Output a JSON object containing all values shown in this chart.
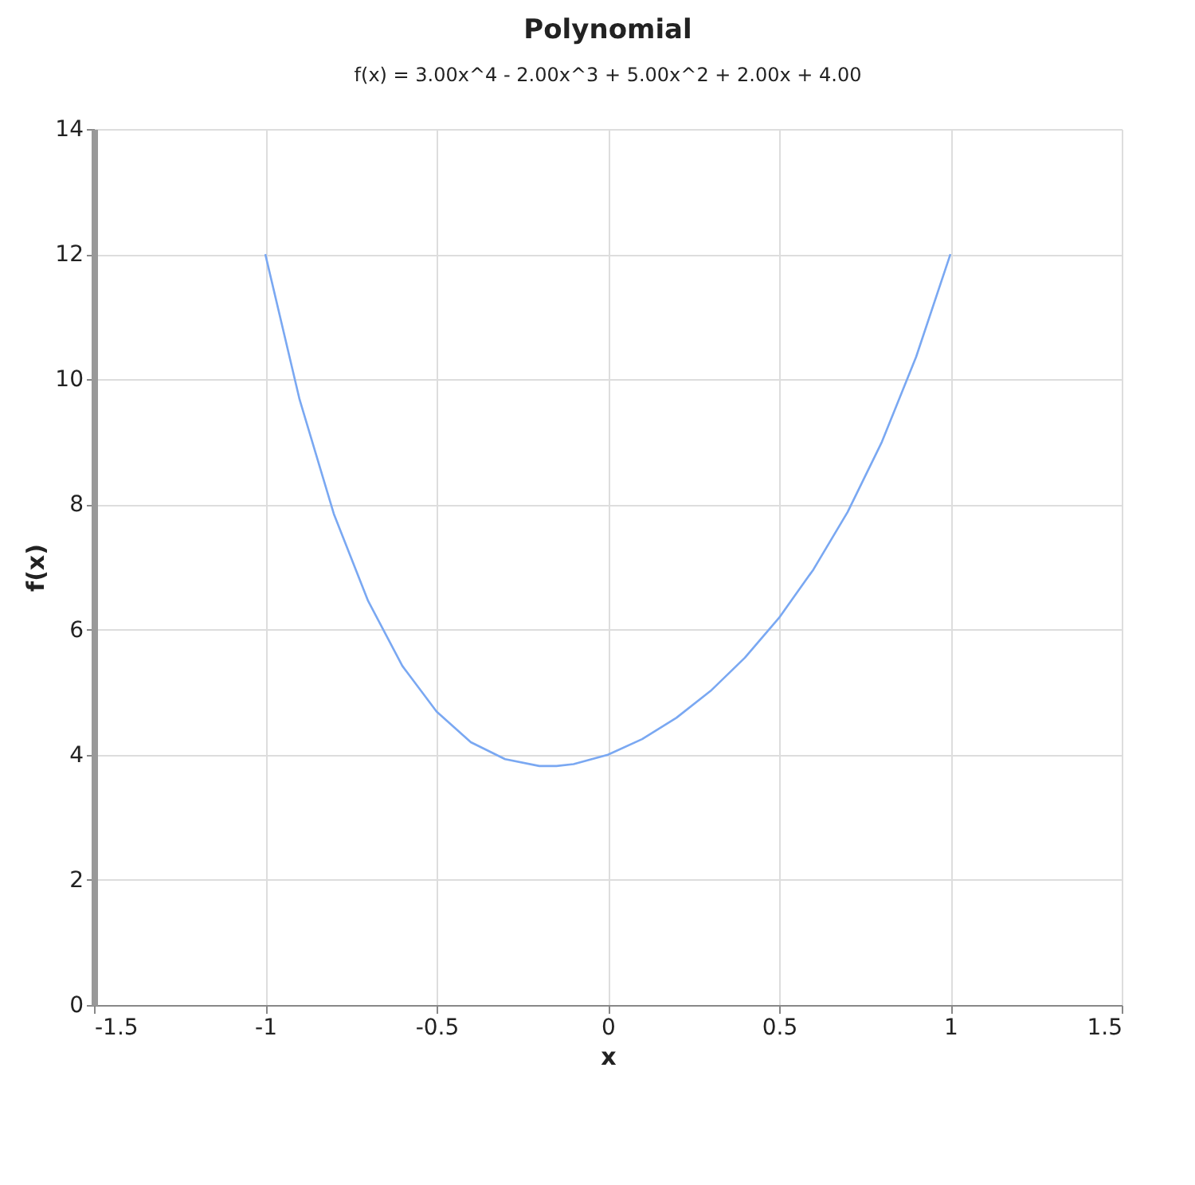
{
  "chart_data": {
    "type": "line",
    "title": "Polynomial",
    "subtitle": "f(x) = 3.00x^4 - 2.00x^3 + 5.00x^2 + 2.00x + 4.00",
    "xlabel": "x",
    "ylabel": "f(x)",
    "x": [
      -1,
      -0.9,
      -0.8,
      -0.7,
      -0.6,
      -0.5,
      -0.4,
      -0.3,
      -0.2,
      -0.15,
      -0.1,
      0,
      0.1,
      0.2,
      0.3,
      0.4,
      0.5,
      0.6,
      0.7,
      0.8,
      0.9,
      1
    ],
    "series": [
      {
        "color": "#7aa8f2",
        "values": [
          12,
          9.68,
          7.85,
          6.46,
          5.42,
          4.69,
          4.2,
          3.93,
          3.82,
          3.82,
          3.85,
          4,
          4.25,
          4.59,
          5.02,
          5.55,
          6.19,
          6.96,
          7.88,
          9,
          10.36,
          12
        ]
      }
    ],
    "xlim": [
      -1.5,
      1.5
    ],
    "xticks": [
      -1.5,
      -1,
      -0.5,
      0,
      0.5,
      1,
      1.5
    ],
    "ylim": [
      0,
      14
    ],
    "yticks": [
      0,
      2,
      4,
      6,
      8,
      10,
      12,
      14
    ],
    "grid": true,
    "marker": "none",
    "line_style": "solid"
  }
}
